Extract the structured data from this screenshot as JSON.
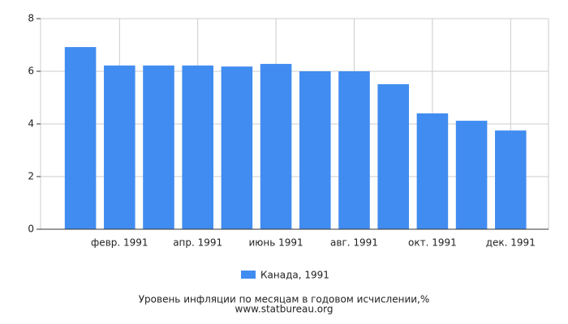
{
  "chart_data": {
    "type": "bar",
    "title": "Уровень инфляции по месяцам в годовом исчислении,%",
    "source": "www.statbureau.org",
    "categories": [
      null,
      "февр. 1991",
      null,
      "апр. 1991",
      null,
      "июнь 1991",
      null,
      "авг. 1991",
      null,
      "окт. 1991",
      null,
      "дек. 1991"
    ],
    "series": [
      {
        "name": "Канада, 1991",
        "color": "#418cf0",
        "values": [
          6.92,
          6.22,
          6.22,
          6.22,
          6.18,
          6.28,
          6.0,
          6.0,
          5.51,
          4.4,
          4.12,
          3.75
        ]
      }
    ],
    "ylim": [
      0,
      8
    ],
    "yticks": [
      0,
      2,
      4,
      6,
      8
    ],
    "grid": true
  }
}
